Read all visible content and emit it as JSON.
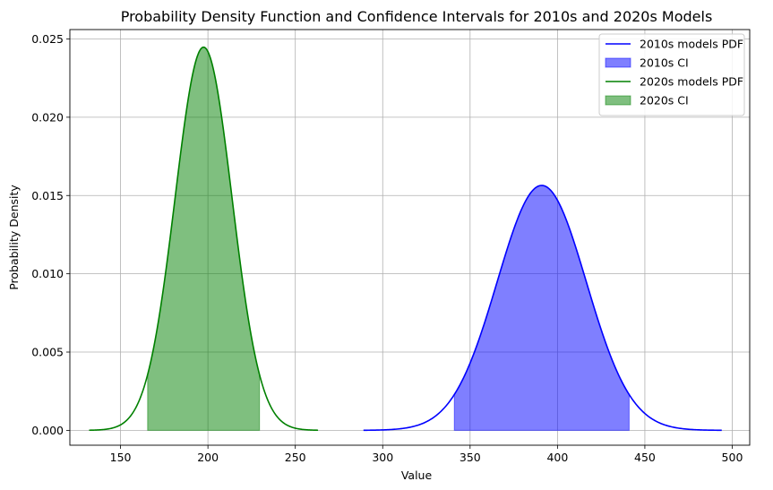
{
  "chart_data": {
    "type": "line",
    "title": "Probability Density Function and Confidence Intervals for 2010s and 2020s Models",
    "xlabel": "Value",
    "ylabel": "Probability Density",
    "xlim": [
      121,
      510
    ],
    "ylim": [
      -0.00095,
      0.0256
    ],
    "xticks": [
      150,
      200,
      250,
      300,
      350,
      400,
      450,
      500
    ],
    "xtick_labels": [
      "150",
      "200",
      "250",
      "300",
      "350",
      "400",
      "450",
      "500"
    ],
    "yticks": [
      0.0,
      0.005,
      0.01,
      0.015,
      0.02,
      0.025
    ],
    "ytick_labels": [
      "0.000",
      "0.005",
      "0.010",
      "0.015",
      "0.020",
      "0.025"
    ],
    "grid": true,
    "legend_position": "top-right",
    "series": [
      {
        "name": "2010s models PDF",
        "kind": "line",
        "color": "#0000ff",
        "mean": 391,
        "sd": 25.5,
        "x_range": [
          289,
          494
        ]
      },
      {
        "name": "2010s CI",
        "kind": "fill",
        "color": "#0000ff",
        "alpha": 0.5,
        "ci": [
          341,
          441
        ]
      },
      {
        "name": "2020s models PDF",
        "kind": "line",
        "color": "#008000",
        "mean": 197.5,
        "sd": 16.3,
        "x_range": [
          132,
          263
        ]
      },
      {
        "name": "2020s CI",
        "kind": "fill",
        "color": "#008000",
        "alpha": 0.5,
        "ci": [
          165.5,
          229.5
        ]
      }
    ]
  }
}
